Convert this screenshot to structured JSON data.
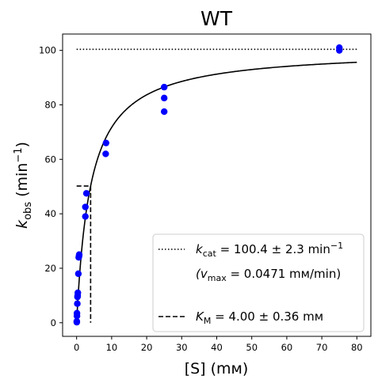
{
  "chart_data": {
    "type": "scatter",
    "title": "WT",
    "xlabel": "[S] (mм)",
    "ylabel_main": "k",
    "ylabel_sub": "obs",
    "ylabel_unit_open": " (min",
    "ylabel_unit_sup": "−1",
    "ylabel_unit_close": ")",
    "xlim": [
      -4,
      84
    ],
    "ylim": [
      -5,
      106
    ],
    "xticks": [
      0,
      10,
      20,
      30,
      40,
      50,
      60,
      70,
      80
    ],
    "yticks": [
      0,
      20,
      40,
      60,
      80,
      100
    ],
    "grid": false,
    "legend_position": "lower-right",
    "colors": {
      "points": "#0000ff",
      "lines": "#000000"
    },
    "michaelis_menten": {
      "kcat": 100.4,
      "KM": 4.0
    },
    "data_points": {
      "x": [
        0.05,
        0.05,
        0.1,
        0.1,
        0.2,
        0.25,
        0.3,
        0.35,
        0.5,
        0.6,
        0.7,
        0.75,
        2.5,
        2.5,
        2.8,
        8.3,
        8.4,
        25,
        25,
        25,
        75,
        75
      ],
      "y": [
        0.2,
        0.5,
        2.5,
        3.5,
        7,
        9.5,
        10,
        11,
        18,
        24,
        24.5,
        25,
        39,
        42.5,
        47.5,
        62,
        66,
        77.5,
        82.5,
        86.5,
        100,
        101
      ]
    },
    "kcat_line": {
      "x": [
        0,
        80
      ],
      "y": 100.4
    },
    "km_marker": {
      "x": 4.0,
      "y_half": 50.2
    },
    "legend": {
      "kcat_symbol": "k",
      "kcat_sub": "cat",
      "kcat_text": " = 100.4 ± 2.3 min",
      "kcat_sup": "−1",
      "vmax_open": "(v",
      "vmax_sub": "max",
      "vmax_text": " = 0.0471 mм/min)",
      "km_symbol": "K",
      "km_sub": "M",
      "km_text": " = 4.00 ± 0.36 mм"
    }
  }
}
